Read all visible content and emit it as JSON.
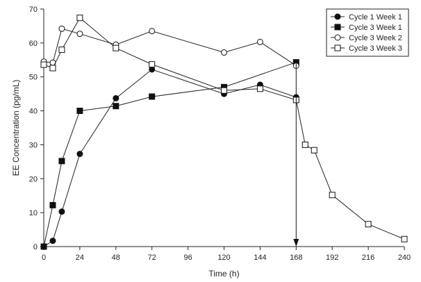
{
  "chart_data": {
    "type": "line",
    "xlabel": "Time (h)",
    "ylabel": "EE Concentration (pg/mL)",
    "xlim": [
      0,
      240
    ],
    "ylim": [
      0,
      70
    ],
    "x_ticks": [
      0,
      24,
      48,
      72,
      96,
      120,
      144,
      168,
      192,
      216,
      240
    ],
    "y_ticks": [
      0,
      10,
      20,
      30,
      40,
      50,
      60,
      70
    ],
    "x_tick_labels": [
      "0",
      "24",
      "48",
      "72",
      "96",
      "120",
      "144",
      "168",
      "192",
      "216",
      "240"
    ],
    "y_tick_labels": [
      "0",
      "10",
      "20",
      "30",
      "40",
      "50",
      "60",
      "70"
    ],
    "grid": false,
    "legend_position": "top-right",
    "series": [
      {
        "name": "Cycle 1 Week 1",
        "marker": "filled-circle",
        "x": [
          0,
          6,
          12,
          24,
          48,
          72,
          120,
          144,
          168
        ],
        "y": [
          0,
          1.7,
          10.3,
          27.3,
          43.7,
          52.2,
          45,
          47.7,
          44
        ]
      },
      {
        "name": "Cycle 3 Week 1",
        "marker": "filled-square",
        "x": [
          0,
          6,
          12,
          24,
          48,
          72,
          120,
          168
        ],
        "y": [
          0,
          12.2,
          25.2,
          40,
          41.4,
          44.2,
          47,
          54.3
        ]
      },
      {
        "name": "Cycle 3 Week 2",
        "marker": "open-circle",
        "x": [
          0,
          6,
          12,
          24,
          48,
          72,
          120,
          144,
          168
        ],
        "y": [
          54.5,
          54.2,
          64.2,
          62.7,
          59.5,
          63.5,
          57.2,
          60.3,
          53.3
        ]
      },
      {
        "name": "Cycle 3 Week 3",
        "marker": "open-square",
        "x": [
          0,
          6,
          12,
          24,
          48,
          72,
          120,
          144,
          168,
          174,
          180,
          192,
          216,
          240
        ],
        "y": [
          53.6,
          52.6,
          58,
          67.4,
          58.5,
          53.7,
          46,
          46.5,
          43.2,
          30,
          28.4,
          15.2,
          6.6,
          2.2
        ]
      }
    ],
    "annotation": {
      "type": "vertical-arrow",
      "x": 168,
      "y_from": 54.3,
      "y_to": 0
    }
  }
}
